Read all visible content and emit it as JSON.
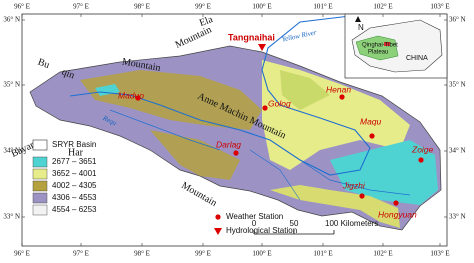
{
  "map": {
    "x_ticks": [
      "96° E",
      "97° E",
      "98° E",
      "99° E",
      "100° E",
      "101° E",
      "102° E",
      "103° E"
    ],
    "y_ticks": [
      "36° N",
      "35° N",
      "34° N",
      "33° N"
    ],
    "mountains": {
      "buqin_1": "Bu",
      "buqin_2": "qin",
      "buqin_3": "Mountain",
      "ela_1": "Ela",
      "ela_2": "Mountain",
      "anne": "Anne Machin Mountain",
      "bayan_1": "Bayan",
      "bayan_2": "Har",
      "bayan_3": "Mountain"
    },
    "hydro_station": "Tangnaihai",
    "rivers": [
      "Yellow River",
      "Requ"
    ],
    "stations": [
      "Maduo",
      "Golog",
      "Henan",
      "Maqu",
      "Zoige",
      "Darlag",
      "Jigzhi",
      "Hongyuan"
    ],
    "legend": {
      "basin": "SRYR Basin",
      "elevation": [
        "2677 – 3651",
        "3652 – 4001",
        "4002 – 4305",
        "4306 – 4553",
        "4554 – 6253"
      ],
      "weather": "Weather Station",
      "hydrological": "Hydrological Station"
    },
    "scale": [
      "0",
      "50",
      "100 Kilometers"
    ],
    "inset": {
      "plateau_1": "Qinghai-Tibet",
      "plateau_2": "Plateau",
      "country": "CHINA",
      "north": "N"
    }
  }
}
